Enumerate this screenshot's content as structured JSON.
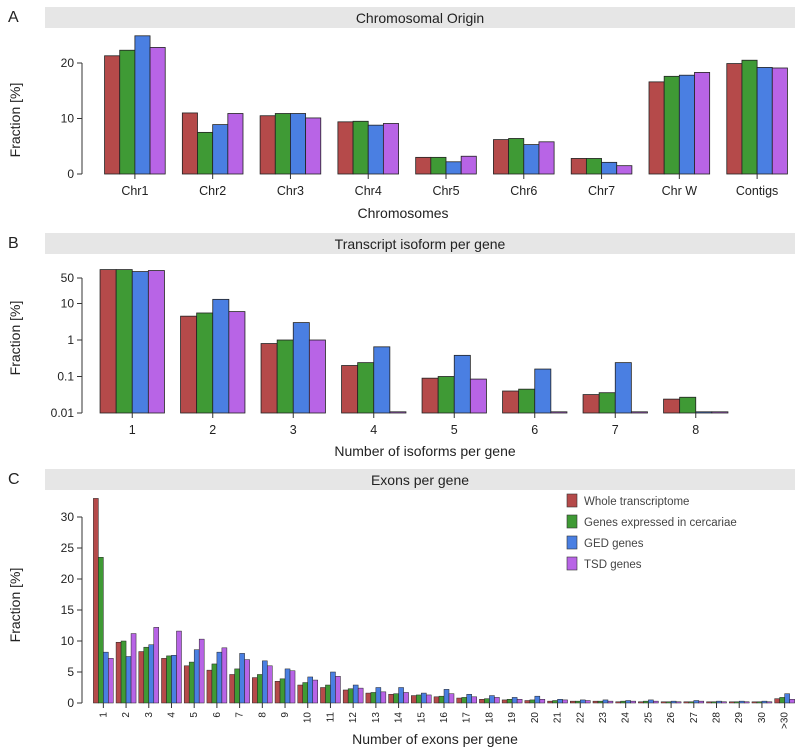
{
  "colors": {
    "whole": "#b54a4a",
    "cercariae": "#3f9a35",
    "ged": "#4a7fe2",
    "tsd": "#b864e6",
    "header": "#e6e6e6"
  },
  "legend_entries": [
    "Whole transcriptome",
    "Genes expressed in cercariae",
    "GED genes",
    "TSD genes"
  ],
  "chart_data": [
    {
      "panel": "A",
      "type": "bar",
      "title": "Chromosomal Origin",
      "xlabel": "Chromosomes",
      "ylabel": "Fraction [%]",
      "categories": [
        "Chr1",
        "Chr2",
        "Chr3",
        "Chr4",
        "Chr5",
        "Chr6",
        "Chr7",
        "Chr W",
        "Contigs"
      ],
      "ylim": [
        0,
        26
      ],
      "yticks": [
        0,
        10,
        20
      ],
      "series": [
        {
          "values": [
            21.3,
            11.0,
            10.5,
            9.4,
            3.0,
            6.2,
            2.8,
            16.6,
            19.9
          ]
        },
        {
          "values": [
            22.3,
            7.5,
            10.9,
            9.5,
            3.0,
            6.4,
            2.8,
            17.6,
            20.5
          ]
        },
        {
          "values": [
            24.9,
            8.9,
            10.9,
            8.8,
            2.2,
            5.3,
            2.1,
            17.8,
            19.2
          ]
        },
        {
          "values": [
            22.8,
            10.9,
            10.1,
            9.1,
            3.2,
            5.8,
            1.5,
            18.3,
            19.1
          ]
        }
      ]
    },
    {
      "panel": "B",
      "type": "bar",
      "title": "Transcript isoform per gene",
      "xlabel": "Number of isoforms per gene",
      "ylabel": "Fraction [%]",
      "yscale": "log",
      "categories": [
        "1",
        "2",
        "3",
        "4",
        "5",
        "6",
        "7",
        "8"
      ],
      "ylim": [
        0.01,
        100
      ],
      "yticks": [
        "0.01",
        "0.1",
        "1",
        "10",
        "50"
      ],
      "series": [
        {
          "values": [
            85,
            4.5,
            0.8,
            0.2,
            0.09,
            0.04,
            0.032,
            0.024
          ]
        },
        {
          "values": [
            85,
            5.5,
            1.0,
            0.24,
            0.1,
            0.045,
            0.036,
            0.027
          ]
        },
        {
          "values": [
            75,
            13,
            3.0,
            0.65,
            0.38,
            0.16,
            0.24,
            0.01
          ]
        },
        {
          "values": [
            80,
            6.0,
            1.0,
            0.01,
            0.085,
            0.01,
            0.01,
            0.01
          ]
        }
      ]
    },
    {
      "panel": "C",
      "type": "bar",
      "title": "Exons per gene",
      "xlabel": "Number of exons per gene",
      "ylabel": "Fraction [%]",
      "categories": [
        "1",
        "2",
        "3",
        "4",
        "5",
        "6",
        "7",
        "8",
        "9",
        "10",
        "11",
        "12",
        "13",
        "14",
        "15",
        "16",
        "17",
        "18",
        "19",
        "20",
        "21",
        "22",
        "23",
        "24",
        "25",
        "26",
        "27",
        "28",
        "29",
        "30",
        ">30"
      ],
      "ylim": [
        0,
        34
      ],
      "yticks": [
        0,
        5,
        10,
        15,
        20,
        25,
        30
      ],
      "legend_position": "top-right",
      "series": [
        {
          "values": [
            33.0,
            9.8,
            8.3,
            7.2,
            6.0,
            5.3,
            4.6,
            4.1,
            3.5,
            2.9,
            2.5,
            2.1,
            1.6,
            1.4,
            1.2,
            1.0,
            0.8,
            0.6,
            0.5,
            0.4,
            0.3,
            0.3,
            0.3,
            0.2,
            0.2,
            0.2,
            0.2,
            0.1,
            0.1,
            0.1,
            0.7
          ]
        },
        {
          "values": [
            23.5,
            10.0,
            9.0,
            7.6,
            6.6,
            6.3,
            5.5,
            4.6,
            3.9,
            3.3,
            2.9,
            2.3,
            1.7,
            1.5,
            1.3,
            1.1,
            0.9,
            0.7,
            0.6,
            0.5,
            0.4,
            0.3,
            0.3,
            0.3,
            0.3,
            0.2,
            0.2,
            0.2,
            0.2,
            0.2,
            0.9
          ]
        },
        {
          "values": [
            8.2,
            7.5,
            9.4,
            7.7,
            8.6,
            8.2,
            8.0,
            6.8,
            5.5,
            4.2,
            5.0,
            2.9,
            2.5,
            2.5,
            1.6,
            2.2,
            1.4,
            1.2,
            0.9,
            1.1,
            0.6,
            0.5,
            0.5,
            0.4,
            0.5,
            0.3,
            0.4,
            0.3,
            0.3,
            0.3,
            1.5
          ]
        },
        {
          "values": [
            7.2,
            11.2,
            12.2,
            11.6,
            10.3,
            8.9,
            7.0,
            6.0,
            5.2,
            3.7,
            4.3,
            2.4,
            1.8,
            1.7,
            1.3,
            1.5,
            1.0,
            0.9,
            0.6,
            0.6,
            0.5,
            0.4,
            0.3,
            0.3,
            0.3,
            0.2,
            0.3,
            0.2,
            0.2,
            0.2,
            0.6
          ]
        }
      ]
    }
  ]
}
